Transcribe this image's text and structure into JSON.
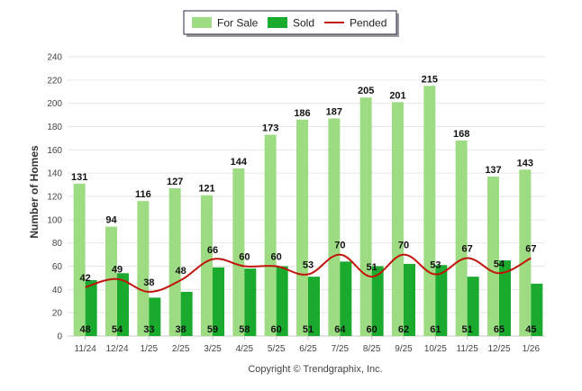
{
  "chart_data": {
    "type": "bar",
    "categories": [
      "11/24",
      "12/24",
      "1/25",
      "2/25",
      "3/25",
      "4/25",
      "5/25",
      "6/25",
      "7/25",
      "8/25",
      "9/25",
      "10/25",
      "11/25",
      "12/25",
      "1/26"
    ],
    "series": [
      {
        "name": "For Sale",
        "kind": "bar",
        "color": "#9edc84",
        "values": [
          131,
          94,
          116,
          127,
          121,
          144,
          173,
          186,
          187,
          205,
          201,
          215,
          168,
          137,
          143
        ]
      },
      {
        "name": "Sold",
        "kind": "bar",
        "color": "#1aab2e",
        "values": [
          48,
          54,
          33,
          38,
          59,
          58,
          60,
          51,
          64,
          60,
          62,
          61,
          51,
          65,
          45
        ]
      },
      {
        "name": "Pended",
        "kind": "line",
        "color": "#c0140c",
        "values": [
          42,
          49,
          38,
          48,
          66,
          60,
          60,
          53,
          70,
          51,
          70,
          53,
          67,
          54,
          67
        ]
      }
    ],
    "ylabel": "Number of Homes",
    "ylim": [
      0,
      240
    ],
    "yticks": [
      0,
      20,
      40,
      60,
      80,
      100,
      120,
      140,
      160,
      180,
      200,
      220,
      240
    ],
    "grid": true,
    "legend_position": "top-center"
  },
  "footer": {
    "copyright": "Copyright © Trendgraphix, Inc."
  }
}
